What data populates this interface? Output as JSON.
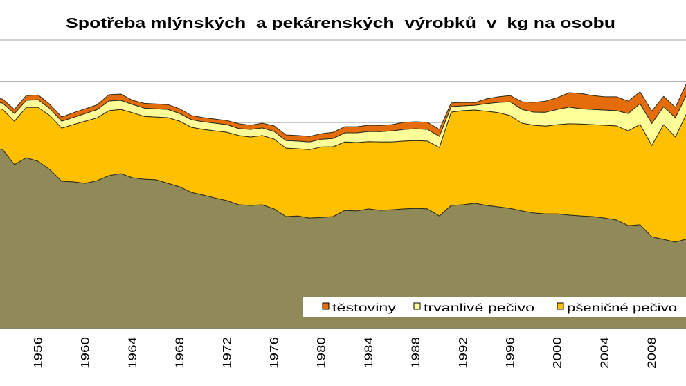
{
  "chart_data": {
    "type": "area",
    "stacked": true,
    "title": "Spotřeba mlýnských  a pekárenských  výrobků  v  kg na osobu",
    "xlabel": "",
    "ylabel": "",
    "ylim": [
      0,
      140
    ],
    "grid": true,
    "legend_position": "bottom-right",
    "x": [
      1952,
      1953,
      1954,
      1955,
      1956,
      1957,
      1958,
      1959,
      1960,
      1961,
      1962,
      1963,
      1964,
      1965,
      1966,
      1967,
      1968,
      1969,
      1970,
      1971,
      1972,
      1973,
      1974,
      1975,
      1976,
      1977,
      1978,
      1979,
      1980,
      1981,
      1982,
      1983,
      1984,
      1985,
      1986,
      1987,
      1988,
      1989,
      1990,
      1991,
      1992,
      1993,
      1994,
      1995,
      1996,
      1997,
      1998,
      1999,
      2000,
      2001,
      2002,
      2003,
      2004,
      2005,
      2006,
      2007,
      2008,
      2009,
      2010,
      2011
    ],
    "x_tick_labels": [
      "1956",
      "1960",
      "1964",
      "1968",
      "1972",
      "1976",
      "1980",
      "1984",
      "1988",
      "1992",
      "1996",
      "2000",
      "2004",
      "2008"
    ],
    "series": [
      {
        "color": "#8F8A58",
        "values": [
          88.3,
          86.9,
          79.6,
          82.9,
          81.2,
          77.2,
          71.5,
          71.2,
          70.5,
          71.8,
          74.2,
          75.2,
          73.2,
          72.5,
          72.2,
          70.5,
          68.8,
          66.1,
          64.8,
          63.4,
          62.1,
          60.1,
          59.8,
          60.1,
          58.1,
          54.4,
          54.7,
          53.7,
          54.0,
          54.4,
          57.4,
          57.1,
          58.1,
          57.4,
          57.7,
          58.1,
          58.4,
          58.1,
          54.7,
          59.8,
          60.1,
          60.8,
          59.8,
          59.1,
          58.4,
          57.1,
          56.1,
          55.7,
          55.7,
          55.1,
          54.7,
          54.4,
          53.7,
          52.7,
          50.0,
          50.4,
          44.6,
          43.3,
          42.0,
          43.6
        ]
      },
      {
        "name": "pšeničné pečivo",
        "color": "#FFC000",
        "values": [
          19.1,
          19.5,
          21.1,
          24.5,
          26.2,
          26.2,
          25.8,
          27.9,
          30.2,
          30.5,
          31.6,
          31.2,
          31.6,
          30.5,
          30.5,
          31.9,
          31.9,
          31.6,
          31.9,
          32.6,
          33.2,
          33.6,
          33.2,
          33.6,
          33.9,
          33.2,
          32.6,
          33.2,
          34.2,
          33.9,
          33.2,
          33.2,
          32.6,
          33.2,
          32.9,
          32.9,
          32.9,
          32.9,
          33.2,
          45.3,
          45.7,
          45.3,
          45.7,
          45.7,
          45.0,
          42.6,
          42.6,
          42.6,
          43.3,
          44.3,
          44.6,
          44.6,
          45.0,
          45.7,
          46.0,
          48.7,
          44.3,
          55.7,
          51.0,
          61.4
        ]
      },
      {
        "name": "trvanlivé pečivo",
        "color": "#FFFF99",
        "values": [
          3.0,
          3.0,
          3.7,
          3.4,
          3.7,
          3.4,
          3.4,
          3.4,
          3.7,
          4.0,
          4.7,
          4.4,
          4.0,
          4.0,
          4.0,
          4.0,
          3.7,
          3.7,
          3.7,
          3.7,
          3.7,
          3.4,
          3.7,
          3.7,
          3.7,
          3.7,
          3.7,
          3.7,
          3.7,
          4.0,
          4.4,
          4.7,
          5.0,
          5.0,
          5.4,
          5.7,
          5.7,
          5.7,
          5.4,
          2.7,
          2.3,
          2.3,
          3.7,
          5.0,
          6.7,
          6.7,
          6.4,
          6.7,
          7.4,
          8.1,
          7.4,
          7.4,
          7.4,
          7.4,
          8.4,
          10.1,
          10.7,
          8.7,
          9.4,
          9.1
        ]
      },
      {
        "name": "těstoviny",
        "color": "#E46C0A",
        "values": [
          2.0,
          2.0,
          2.0,
          2.3,
          2.3,
          2.0,
          2.0,
          2.3,
          2.3,
          2.3,
          3.0,
          3.0,
          2.0,
          2.3,
          2.3,
          2.3,
          2.3,
          2.0,
          2.0,
          2.0,
          2.0,
          2.3,
          2.0,
          2.3,
          2.7,
          2.7,
          2.7,
          2.7,
          2.7,
          3.0,
          3.0,
          3.0,
          3.0,
          3.0,
          3.0,
          3.4,
          3.4,
          3.4,
          3.4,
          1.7,
          1.7,
          1.3,
          2.3,
          2.7,
          3.0,
          3.7,
          4.7,
          5.4,
          5.7,
          7.0,
          7.4,
          6.7,
          6.4,
          6.7,
          6.0,
          5.7,
          6.0,
          5.0,
          5.0,
          5.7
        ]
      }
    ]
  }
}
